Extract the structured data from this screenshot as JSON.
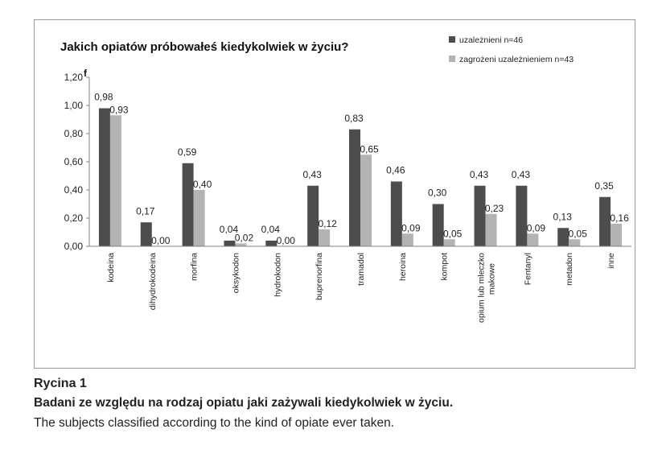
{
  "chart_data": {
    "type": "bar",
    "title": "Jakich opiatów próbowałeś kiedykolwiek w życiu?",
    "xlabel": "",
    "ylabel": "f",
    "ylim": [
      0,
      1.2
    ],
    "yticks": [
      "0,00",
      "0,20",
      "0,40",
      "0,60",
      "0,80",
      "1,00",
      "1,20"
    ],
    "grid": false,
    "legend_position": "top-right",
    "categories": [
      "kodeina",
      "dihydrokodeina",
      "morfina",
      "oksykodon",
      "hydrokodon",
      "buprenorfina",
      "tramadol",
      "heroina",
      "kompot",
      "opium lub mleczko makowe",
      "Fentanyl",
      "metadon",
      "inne"
    ],
    "series": [
      {
        "name": "uzależnieni n=46",
        "color": "#4d4d4d",
        "values": [
          0.98,
          0.17,
          0.59,
          0.04,
          0.04,
          0.43,
          0.83,
          0.46,
          0.3,
          0.43,
          0.43,
          0.13,
          0.35
        ],
        "labels": [
          "0,98",
          "0,17",
          "0,59",
          "0,04",
          "0,04",
          "0,43",
          "0,83",
          "0,46",
          "0,30",
          "0,43",
          "0,43",
          "0,13",
          "0,35"
        ]
      },
      {
        "name": "zagrożeni uzależnieniem n=43",
        "color": "#b3b3b3",
        "values": [
          0.93,
          0.0,
          0.4,
          0.02,
          0.0,
          0.12,
          0.65,
          0.09,
          0.05,
          0.23,
          0.09,
          0.05,
          0.16
        ],
        "labels": [
          "0,93",
          "0,00",
          "0,40",
          "0,02",
          "0,00",
          "0,12",
          "0,65",
          "0,09",
          "0,05",
          "0,23",
          "0,09",
          "0,05",
          "0,16"
        ]
      }
    ]
  },
  "caption": {
    "label": "Rycina 1",
    "polish": "Badani ze względu na rodzaj opiatu jaki zażywali kiedykolwiek w życiu.",
    "english": "The subjects classified according to the kind of opiate ever taken."
  }
}
